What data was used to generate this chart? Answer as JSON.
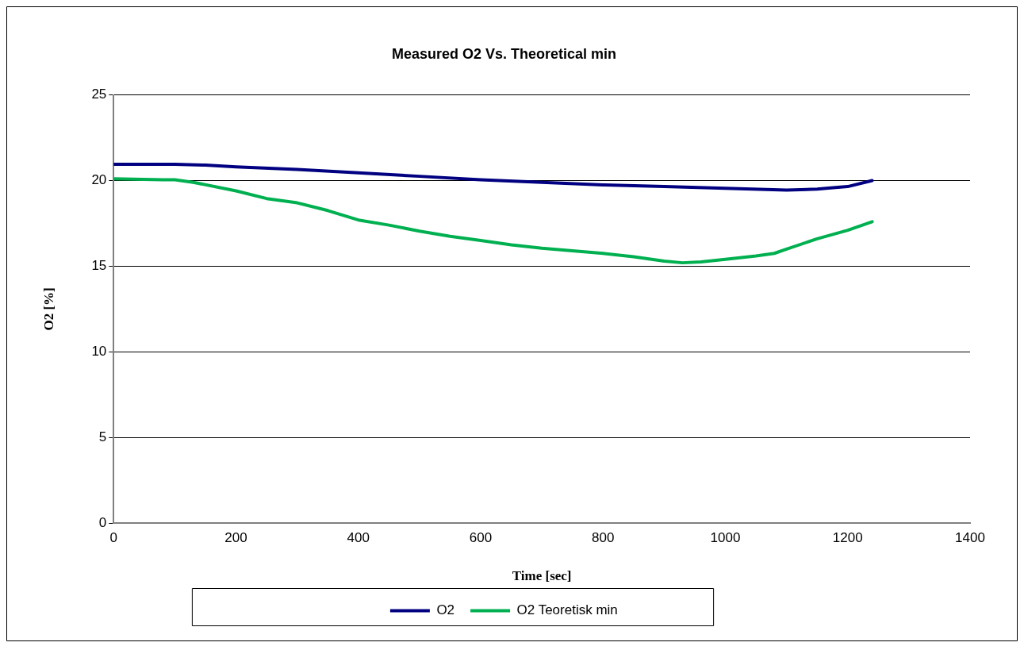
{
  "chart_data": {
    "type": "line",
    "title": "Measured O2 Vs. Theoretical min",
    "xlabel": "Time [sec]",
    "ylabel": "O2 [%]",
    "xlim": [
      0,
      1400
    ],
    "xticks": [
      0,
      200,
      400,
      600,
      800,
      1000,
      1200,
      1400
    ],
    "ylim": [
      0,
      25
    ],
    "yticks": [
      0,
      5,
      10,
      15,
      20,
      25
    ],
    "grid": "y",
    "legend": "bottom",
    "marker": "none",
    "line_style": "solid",
    "series": [
      {
        "name": "O2",
        "color": "#000080",
        "x": [
          0,
          100,
          150,
          200,
          300,
          400,
          500,
          600,
          700,
          800,
          900,
          1000,
          1100,
          1150,
          1180,
          1200,
          1240
        ],
        "values": [
          20.95,
          20.95,
          20.9,
          20.8,
          20.65,
          20.45,
          20.25,
          20.05,
          19.9,
          19.75,
          19.65,
          19.55,
          19.45,
          19.5,
          19.6,
          19.65,
          20.0
        ]
      },
      {
        "name": "O2 Teoretisk min",
        "color": "#00b050",
        "x": [
          0,
          80,
          100,
          130,
          200,
          250,
          300,
          350,
          400,
          450,
          500,
          550,
          600,
          650,
          700,
          750,
          800,
          850,
          900,
          930,
          960,
          1000,
          1050,
          1080,
          1100,
          1150,
          1200,
          1240
        ],
        "values": [
          20.1,
          20.05,
          20.05,
          19.9,
          19.4,
          18.95,
          18.7,
          18.25,
          17.7,
          17.4,
          17.05,
          16.75,
          16.5,
          16.25,
          16.05,
          15.9,
          15.75,
          15.55,
          15.3,
          15.2,
          15.25,
          15.4,
          15.6,
          15.75,
          16.0,
          16.6,
          17.1,
          17.6
        ]
      }
    ]
  }
}
